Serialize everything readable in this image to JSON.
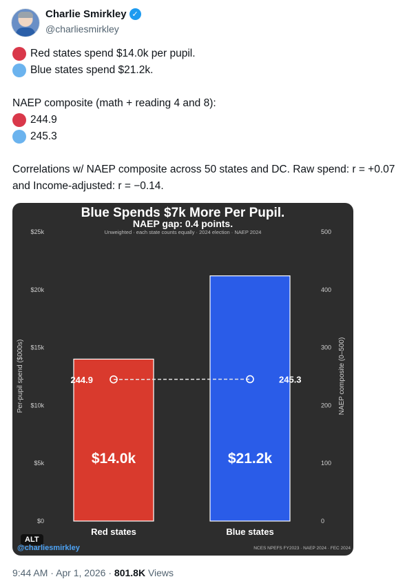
{
  "author": {
    "name": "Charlie Smirkley",
    "handle": "@charliesmirkley"
  },
  "tweet": {
    "line1": "Red states spend $14.0k per pupil.",
    "line2": "Blue states spend $21.2k.",
    "naep_heading": "NAEP composite (math + reading 4 and 8):",
    "naep_red": "244.9",
    "naep_blue": "245.3",
    "correlations": "Correlations w/ NAEP composite across 50 states and DC. Raw spend: r = +0.07 and Income-adjusted: r = −0.14."
  },
  "chart": {
    "title": "Blue Spends $7k More Per Pupil.",
    "subtitle": "NAEP gap: 0.4 points.",
    "note": "Unweighted  ·  each state counts equally  ·  2024 election  ·  NAEP 2024",
    "credit": "@charliesmirkley",
    "sources": "NCES NPEFS FY2023  ·  NAEP 2024  ·  FEC 2024",
    "alt": "ALT"
  },
  "chart_data": {
    "type": "bar",
    "title": "Blue Spends $7k More Per Pupil.",
    "subtitle": "NAEP gap: 0.4 points.",
    "categories": [
      "Red states",
      "Blue states"
    ],
    "values": [
      14.0,
      21.2
    ],
    "bar_labels": [
      "$14.0k",
      "$21.2k"
    ],
    "bar_colors": [
      "#d93a2d",
      "#2a5ce8"
    ],
    "ylabel": "Per-pupil spend ($000s)",
    "ylim": [
      0,
      25
    ],
    "yticks": [
      0,
      5,
      10,
      15,
      20,
      25
    ],
    "ytick_labels": [
      "$0",
      "$5k",
      "$10k",
      "$15k",
      "$20k",
      "$25k"
    ],
    "y2label": "NAEP composite (0–500)",
    "y2lim": [
      0,
      500
    ],
    "y2ticks": [
      0,
      100,
      200,
      300,
      400,
      500
    ],
    "y2tick_labels": [
      "0",
      "100",
      "200",
      "300",
      "400",
      "500"
    ],
    "naep": {
      "values": [
        244.9,
        245.3
      ],
      "labels": [
        "244.9",
        "245.3"
      ]
    },
    "grid": false,
    "legend": "none"
  },
  "meta": {
    "time": "9:44 AM",
    "date": "Apr 1, 2026",
    "views": "801.8K",
    "views_label": "Views",
    "sep": "·"
  }
}
